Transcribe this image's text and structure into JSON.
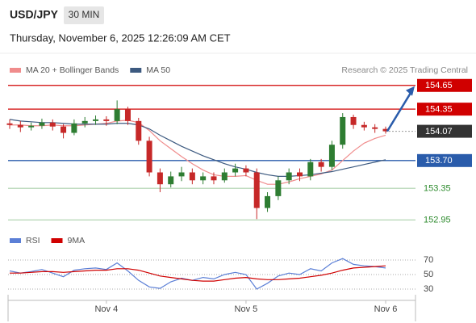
{
  "header": {
    "symbol": "USD/JPY",
    "interval": "30 MIN",
    "timestamp": "Thursday, November 6, 2025 12:26:09 AM CET",
    "source": "Research © 2025 Trading Central"
  },
  "chart_data": [
    {
      "type": "candlestick",
      "categories": [
        null,
        null,
        null,
        null,
        null,
        null,
        null,
        null,
        null,
        "Nov 4",
        null,
        null,
        null,
        null,
        null,
        null,
        null,
        null,
        null,
        null,
        null,
        null,
        "Nov 5",
        null,
        null,
        null,
        null,
        null,
        null,
        null,
        null,
        null,
        null,
        null,
        null,
        "Nov 6"
      ],
      "open": [
        154.17,
        154.15,
        154.12,
        154.14,
        154.18,
        154.13,
        154.05,
        154.17,
        154.2,
        154.22,
        154.2,
        154.35,
        154.2,
        153.95,
        153.55,
        153.4,
        153.5,
        153.55,
        153.45,
        153.5,
        153.45,
        153.55,
        153.6,
        153.55,
        153.1,
        153.25,
        153.45,
        153.55,
        153.5,
        153.68,
        153.62,
        153.9,
        154.25,
        154.15,
        154.12,
        154.1
      ],
      "high": [
        154.22,
        154.2,
        154.18,
        154.23,
        154.22,
        154.16,
        154.22,
        154.25,
        154.27,
        154.26,
        154.46,
        154.38,
        154.24,
        154.0,
        153.6,
        153.56,
        153.62,
        153.6,
        153.55,
        153.55,
        153.6,
        153.66,
        153.64,
        153.6,
        153.3,
        153.5,
        153.6,
        153.6,
        153.72,
        153.72,
        153.95,
        154.3,
        154.28,
        154.19,
        154.16,
        154.13
      ],
      "low": [
        154.1,
        154.06,
        154.08,
        154.1,
        154.08,
        153.98,
        154.02,
        154.12,
        154.15,
        154.14,
        154.16,
        154.15,
        153.9,
        153.5,
        153.3,
        153.36,
        153.44,
        153.4,
        153.4,
        153.4,
        153.42,
        153.5,
        153.5,
        152.96,
        153.05,
        153.2,
        153.4,
        153.44,
        153.45,
        153.56,
        153.58,
        153.85,
        154.1,
        154.08,
        154.05,
        154.04
      ],
      "close": [
        154.15,
        154.12,
        154.14,
        154.18,
        154.13,
        154.05,
        154.17,
        154.2,
        154.22,
        154.2,
        154.35,
        154.2,
        153.95,
        153.55,
        153.4,
        153.5,
        153.55,
        153.45,
        153.5,
        153.45,
        153.55,
        153.6,
        153.55,
        153.1,
        153.25,
        153.45,
        153.55,
        153.5,
        153.68,
        153.62,
        153.9,
        154.25,
        154.15,
        154.12,
        154.1,
        154.07
      ],
      "up_color": "#2e7d32",
      "down_color": "#c62828",
      "series": [
        {
          "name": "MA 20 + Bollinger Bands",
          "color": "#f08c8c",
          "values": [
            154.15,
            154.15,
            154.14,
            154.14,
            154.15,
            154.14,
            154.14,
            154.15,
            154.16,
            154.17,
            154.2,
            154.21,
            154.18,
            154.08,
            153.95,
            153.85,
            153.75,
            153.66,
            153.58,
            153.52,
            153.5,
            153.5,
            153.51,
            153.45,
            153.4,
            153.4,
            153.43,
            153.47,
            153.5,
            153.53,
            153.58,
            153.7,
            153.82,
            153.92,
            153.98,
            154.02
          ]
        },
        {
          "name": "MA 50",
          "color": "#3d5a80",
          "values": [
            154.22,
            154.2,
            154.19,
            154.18,
            154.18,
            154.17,
            154.16,
            154.16,
            154.16,
            154.16,
            154.17,
            154.17,
            154.15,
            154.1,
            154.02,
            153.95,
            153.88,
            153.82,
            153.76,
            153.71,
            153.66,
            153.62,
            153.59,
            153.55,
            153.52,
            153.5,
            153.5,
            153.51,
            153.52,
            153.54,
            153.56,
            153.59,
            153.62,
            153.65,
            153.68,
            153.71
          ]
        }
      ],
      "ylim": [
        152.82,
        154.76
      ],
      "levels": [
        {
          "value": 154.65,
          "color": "#d00000",
          "style": "boxed",
          "line": "solid"
        },
        {
          "value": 154.35,
          "color": "#d00000",
          "style": "boxed",
          "line": "solid"
        },
        {
          "value": 154.07,
          "color": "#333333",
          "style": "boxed",
          "line": "dotted"
        },
        {
          "value": 153.7,
          "label": "153.70",
          "color": "#2a5cab",
          "style": "boxed",
          "line": "solid"
        },
        {
          "value": 153.35,
          "color": "#2e8b2e",
          "style": "text",
          "line": "solid"
        },
        {
          "value": 152.95,
          "color": "#2e8b2e",
          "style": "text",
          "line": "solid"
        }
      ]
    },
    {
      "type": "line",
      "series": [
        {
          "name": "RSI",
          "color": "#5b7fd6",
          "values": [
            55,
            52,
            54,
            57,
            52,
            47,
            56,
            58,
            59,
            57,
            66,
            55,
            42,
            33,
            31,
            40,
            45,
            42,
            46,
            44,
            50,
            53,
            50,
            30,
            38,
            48,
            52,
            50,
            58,
            55,
            66,
            72,
            64,
            62,
            61,
            59
          ]
        },
        {
          "name": "9MA",
          "color": "#d00000",
          "values": [
            52,
            52,
            53,
            54,
            54,
            53,
            54,
            55,
            56,
            56,
            58,
            58,
            56,
            52,
            48,
            46,
            44,
            42,
            41,
            41,
            43,
            45,
            46,
            44,
            43,
            43,
            44,
            45,
            47,
            49,
            52,
            56,
            59,
            60,
            61,
            62
          ]
        }
      ],
      "ylim": [
        20,
        80
      ],
      "yticks": [
        30,
        50,
        70
      ]
    }
  ]
}
